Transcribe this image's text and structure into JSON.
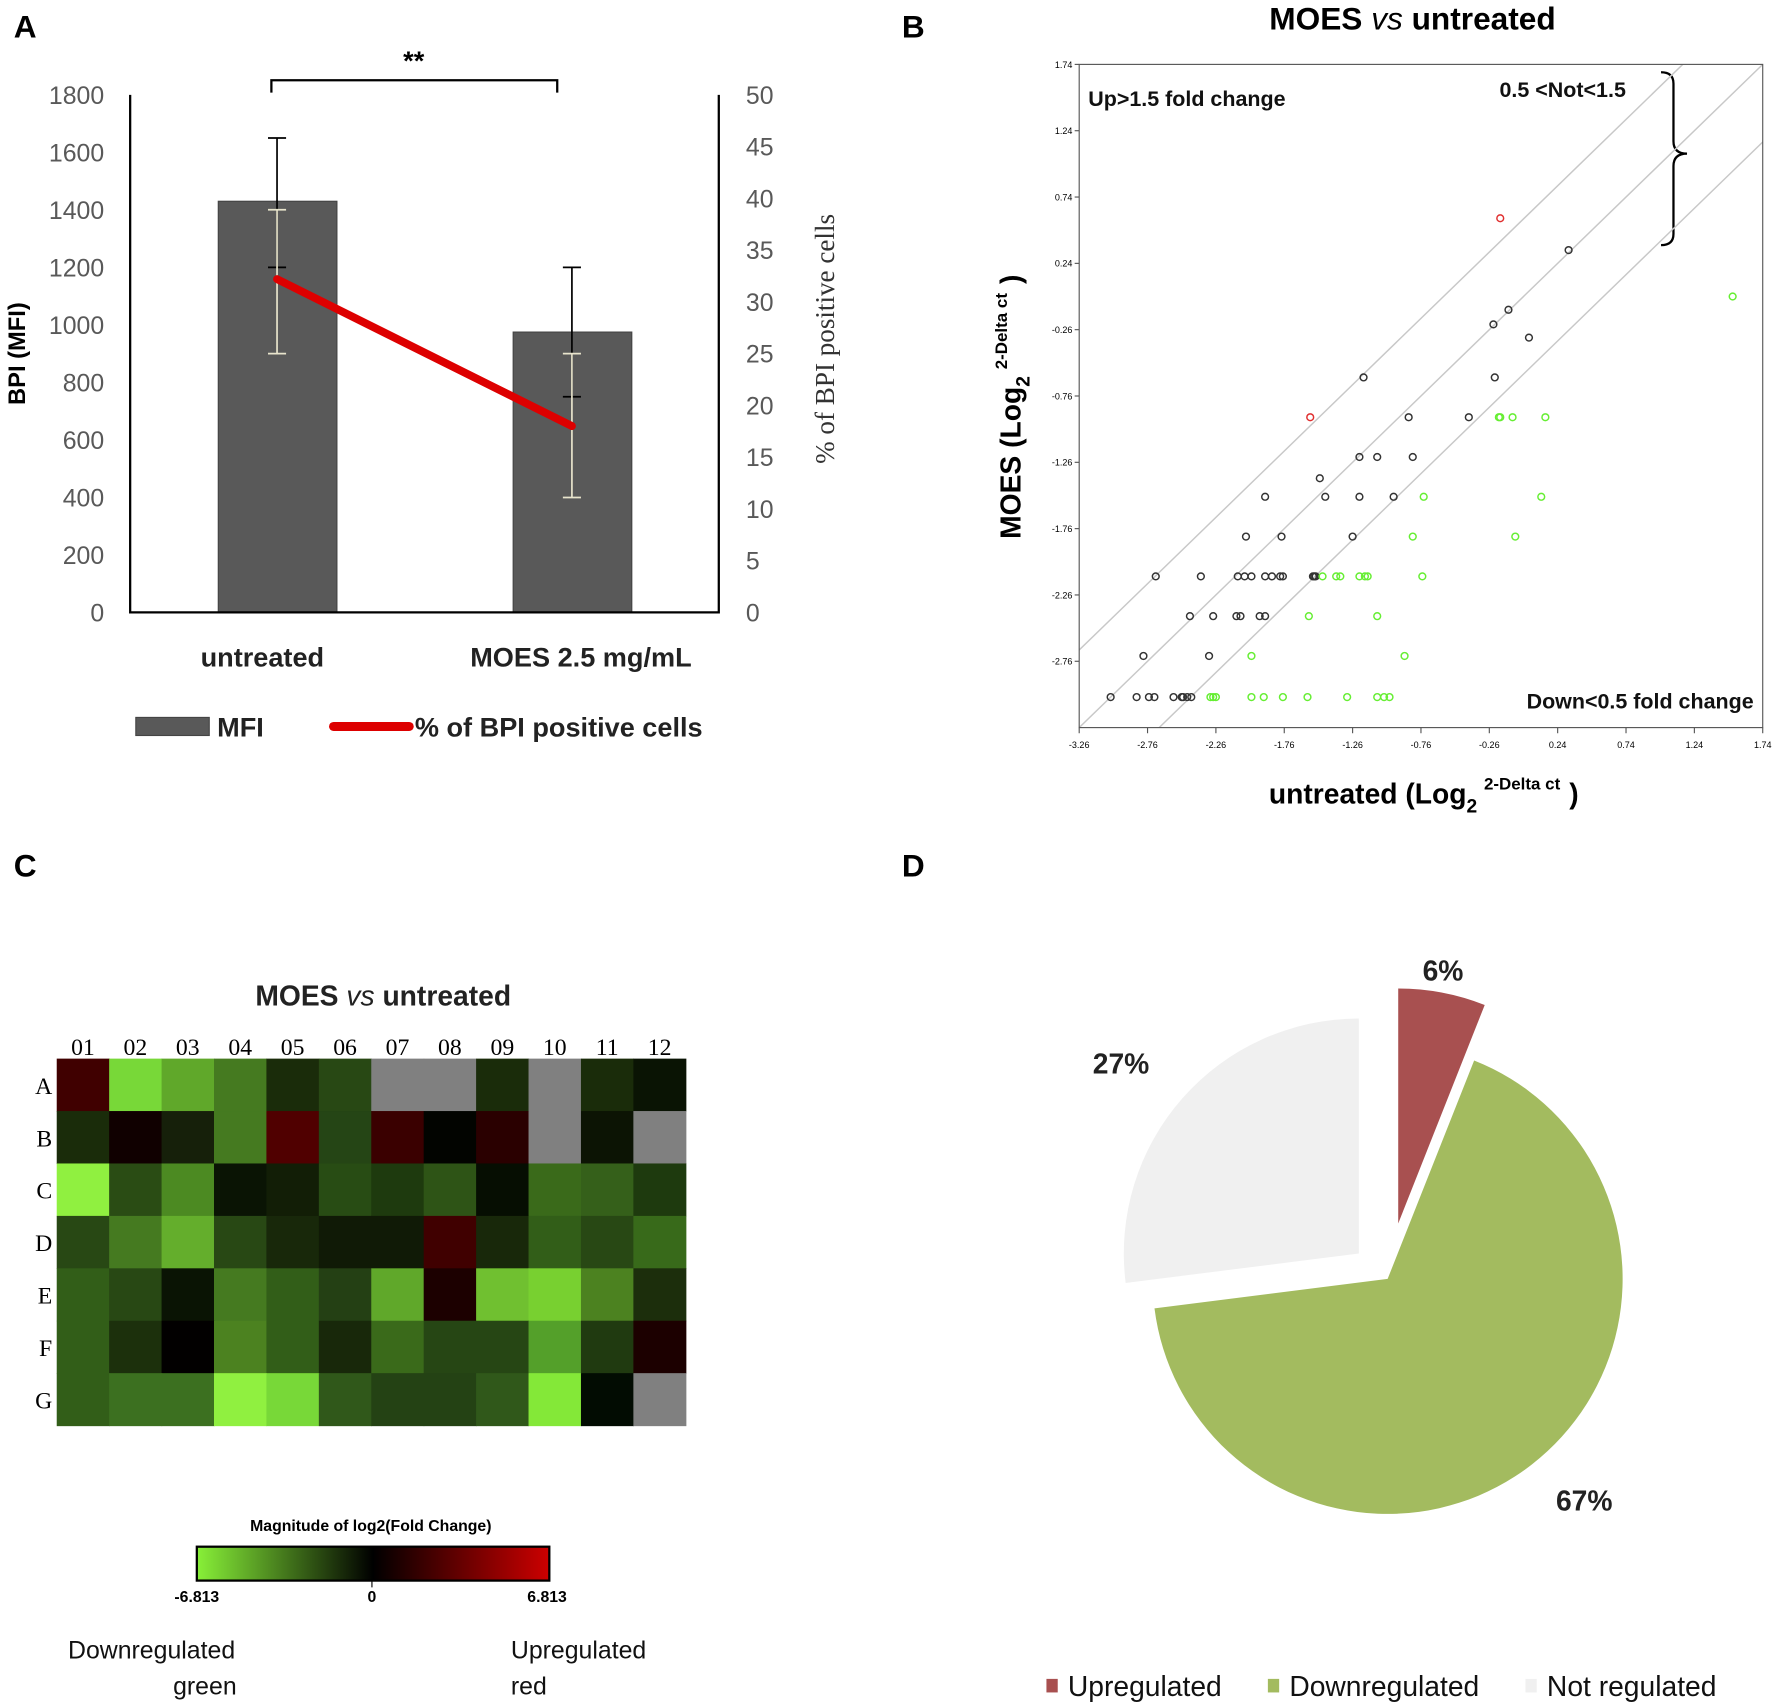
{
  "panels": {
    "a": "A",
    "b": "B",
    "c": "C",
    "d": "D"
  },
  "chart_data": [
    {
      "panel": "A",
      "type": "bar",
      "categories": [
        "untreated",
        "MOES 2.5 mg/mL"
      ],
      "ylabel": "BPI (MFI)",
      "y2label": "% of BPI positive cells",
      "ylim": [
        0,
        1800
      ],
      "yticks": [
        0,
        200,
        400,
        600,
        800,
        1000,
        1200,
        1400,
        1600,
        1800
      ],
      "y2lim": [
        0,
        50
      ],
      "y2ticks": [
        0,
        5,
        10,
        15,
        20,
        25,
        30,
        35,
        40,
        45,
        50
      ],
      "significance": "**",
      "series": [
        {
          "name": "MFI",
          "type": "bar",
          "axis": "left",
          "color": "#595959",
          "values": [
            1430,
            975
          ],
          "error_low": [
            1200,
            750
          ],
          "error_high": [
            1650,
            1200
          ]
        },
        {
          "name": "% of BPI positive cells",
          "type": "line",
          "axis": "right",
          "color": "#dd0000",
          "values": [
            32.2,
            18.0
          ],
          "error_low": [
            25.0,
            11.1
          ],
          "error_high": [
            38.9,
            25.0
          ]
        }
      ],
      "legend": [
        "MFI",
        "% of BPI positive cells"
      ],
      "legend_position": "bottom"
    },
    {
      "panel": "B",
      "type": "scatter",
      "title_main": "MOES ",
      "title_italic": "vs",
      "title_rest": " untreated",
      "xlabel": "untreated (Log",
      "ylabel": "MOES (Log",
      "label_sub": "2",
      "label_sup": "2-Delta ct",
      "label_close": ")",
      "xlim": [
        -3.26,
        1.74
      ],
      "ylim": [
        -3.26,
        1.74
      ],
      "ticks": [
        "-3.26",
        "-2.76",
        "-2.26",
        "-1.76",
        "-1.26",
        "-0.76",
        "-0.26",
        "0.24",
        "0.74",
        "1.24",
        "1.74"
      ],
      "boundary_offset_log2": 0.585,
      "annotations": {
        "up": "Up>1.5 fold change",
        "not": "0.5 <Not<1.5",
        "down": "Down<0.5 fold change"
      },
      "series": [
        {
          "name": "not regulated",
          "color": "#333333",
          "points": [
            [
              -3.03,
              -3.03
            ],
            [
              -2.84,
              -3.03
            ],
            [
              -2.75,
              -3.03
            ],
            [
              -2.71,
              -3.03
            ],
            [
              -2.57,
              -3.03
            ],
            [
              -2.51,
              -3.03
            ],
            [
              -2.5,
              -3.03
            ],
            [
              -2.47,
              -3.03
            ],
            [
              -2.44,
              -3.03
            ],
            [
              -2.79,
              -2.72
            ],
            [
              -2.31,
              -2.72
            ],
            [
              -2.45,
              -2.42
            ],
            [
              -2.28,
              -2.42
            ],
            [
              -2.11,
              -2.42
            ],
            [
              -2.08,
              -2.42
            ],
            [
              -1.94,
              -2.42
            ],
            [
              -1.9,
              -2.42
            ],
            [
              -2.7,
              -2.12
            ],
            [
              -2.37,
              -2.12
            ],
            [
              -2.1,
              -2.12
            ],
            [
              -2.05,
              -2.12
            ],
            [
              -2.0,
              -2.12
            ],
            [
              -1.9,
              -2.12
            ],
            [
              -1.85,
              -2.12
            ],
            [
              -1.79,
              -2.12
            ],
            [
              -1.77,
              -2.12
            ],
            [
              -1.55,
              -2.12
            ],
            [
              -1.54,
              -2.12
            ],
            [
              -1.53,
              -2.12
            ],
            [
              -2.04,
              -1.82
            ],
            [
              -1.78,
              -1.82
            ],
            [
              -1.26,
              -1.82
            ],
            [
              -1.9,
              -1.52
            ],
            [
              -1.46,
              -1.52
            ],
            [
              -1.21,
              -1.52
            ],
            [
              -0.96,
              -1.52
            ],
            [
              -1.5,
              -1.38
            ],
            [
              -1.21,
              -1.22
            ],
            [
              -1.08,
              -1.22
            ],
            [
              -0.82,
              -1.22
            ],
            [
              -0.85,
              -0.92
            ],
            [
              -0.41,
              -0.92
            ],
            [
              -1.18,
              -0.62
            ],
            [
              -0.22,
              -0.62
            ],
            [
              -0.23,
              -0.22
            ],
            [
              0.03,
              -0.32
            ],
            [
              -0.12,
              -0.11
            ],
            [
              0.32,
              0.34
            ]
          ]
        },
        {
          "name": "upregulated",
          "color": "#e03030",
          "points": [
            [
              -1.57,
              -0.92
            ],
            [
              -0.18,
              0.58
            ]
          ]
        },
        {
          "name": "downregulated",
          "color": "#66ee33",
          "points": [
            [
              -2.3,
              -3.03
            ],
            [
              -2.28,
              -3.03
            ],
            [
              -2.26,
              -3.03
            ],
            [
              -2.0,
              -3.03
            ],
            [
              -1.91,
              -3.03
            ],
            [
              -1.77,
              -3.03
            ],
            [
              -1.59,
              -3.03
            ],
            [
              -1.3,
              -3.03
            ],
            [
              -1.08,
              -3.03
            ],
            [
              -1.03,
              -3.03
            ],
            [
              -0.99,
              -3.03
            ],
            [
              -2.0,
              -2.72
            ],
            [
              -0.88,
              -2.72
            ],
            [
              -1.58,
              -2.42
            ],
            [
              -1.08,
              -2.42
            ],
            [
              -1.48,
              -2.12
            ],
            [
              -1.38,
              -2.12
            ],
            [
              -1.35,
              -2.12
            ],
            [
              -1.21,
              -2.12
            ],
            [
              -1.17,
              -2.12
            ],
            [
              -1.15,
              -2.12
            ],
            [
              -0.75,
              -2.12
            ],
            [
              -0.82,
              -1.82
            ],
            [
              -0.07,
              -1.82
            ],
            [
              -0.74,
              -1.52
            ],
            [
              0.12,
              -1.52
            ],
            [
              -0.19,
              -0.92
            ],
            [
              -0.18,
              -0.92
            ],
            [
              -0.09,
              -0.92
            ],
            [
              0.15,
              -0.92
            ],
            [
              1.52,
              -0.01
            ]
          ]
        }
      ]
    },
    {
      "panel": "C",
      "type": "heatmap",
      "title_main": "MOES ",
      "title_italic": "vs",
      "title_rest": " untreated",
      "columns": [
        "01",
        "02",
        "03",
        "04",
        "05",
        "06",
        "07",
        "08",
        "09",
        "10",
        "11",
        "12"
      ],
      "rows": [
        "A",
        "B",
        "C",
        "D",
        "E",
        "F",
        "G"
      ],
      "cell_colors": [
        [
          "#400000",
          "#78d838",
          "#60a82a",
          "#457a20",
          "#1a2c0a",
          "#284814",
          "#808080",
          "#808080",
          "#1a2c0a",
          "#808080",
          "#1a2c0a",
          "#0a1404"
        ],
        [
          "#1a2c0a",
          "#100000",
          "#16200a",
          "#457a20",
          "#500000",
          "#254515",
          "#3a0000",
          "#020400",
          "#2a0000",
          "#808080",
          "#0c1404",
          "#808080"
        ],
        [
          "#90f040",
          "#2a4c14",
          "#4c8a22",
          "#0a1404",
          "#121e06",
          "#284c14",
          "#1e3a0e",
          "#2e5416",
          "#060e02",
          "#3a6a1a",
          "#35601a",
          "#1e3a0e"
        ],
        [
          "#284814",
          "#457a20",
          "#64ae2c",
          "#284814",
          "#18280a",
          "#101a06",
          "#101a06",
          "#400000",
          "#18280a",
          "#325e18",
          "#284814",
          "#386a1a"
        ],
        [
          "#325e18",
          "#284814",
          "#0a1404",
          "#457a20",
          "#325e18",
          "#244014",
          "#60a82a",
          "#1c0000",
          "#70c030",
          "#78d030",
          "#4c8220",
          "#1c2e0c"
        ],
        [
          "#325e18",
          "#1c300c",
          "#020000",
          "#4c8220",
          "#325e18",
          "#18280a",
          "#3a6a1a",
          "#264614",
          "#264614",
          "#54a02a",
          "#203a10",
          "#1c0000"
        ],
        [
          "#325e18",
          "#3c7020",
          "#3c7020",
          "#90f040",
          "#78d838",
          "#30581a",
          "#244214",
          "#244214",
          "#30581a",
          "#84e838",
          "#020c02",
          "#808080"
        ]
      ],
      "colorbar": {
        "title": "Magnitude of log2(Fold Change)",
        "min": "-6.813",
        "mid": "0",
        "max": "6.813",
        "colors": [
          "#88f038",
          "#000000",
          "#cc0000"
        ]
      },
      "legend": {
        "down": "Downregulated",
        "down_color": "green",
        "up": "Upregulated",
        "up_color": "red"
      }
    },
    {
      "panel": "D",
      "type": "pie",
      "labels": [
        "Upregulated",
        "Downregulated",
        "Not regulated"
      ],
      "values": [
        6,
        67,
        27
      ],
      "value_labels": [
        "6%",
        "67%",
        "27%"
      ],
      "colors": [
        "#a85050",
        "#a3bb5f",
        "#f0f0f0"
      ],
      "exploded": [
        true,
        false,
        true
      ],
      "legend_position": "bottom"
    }
  ]
}
